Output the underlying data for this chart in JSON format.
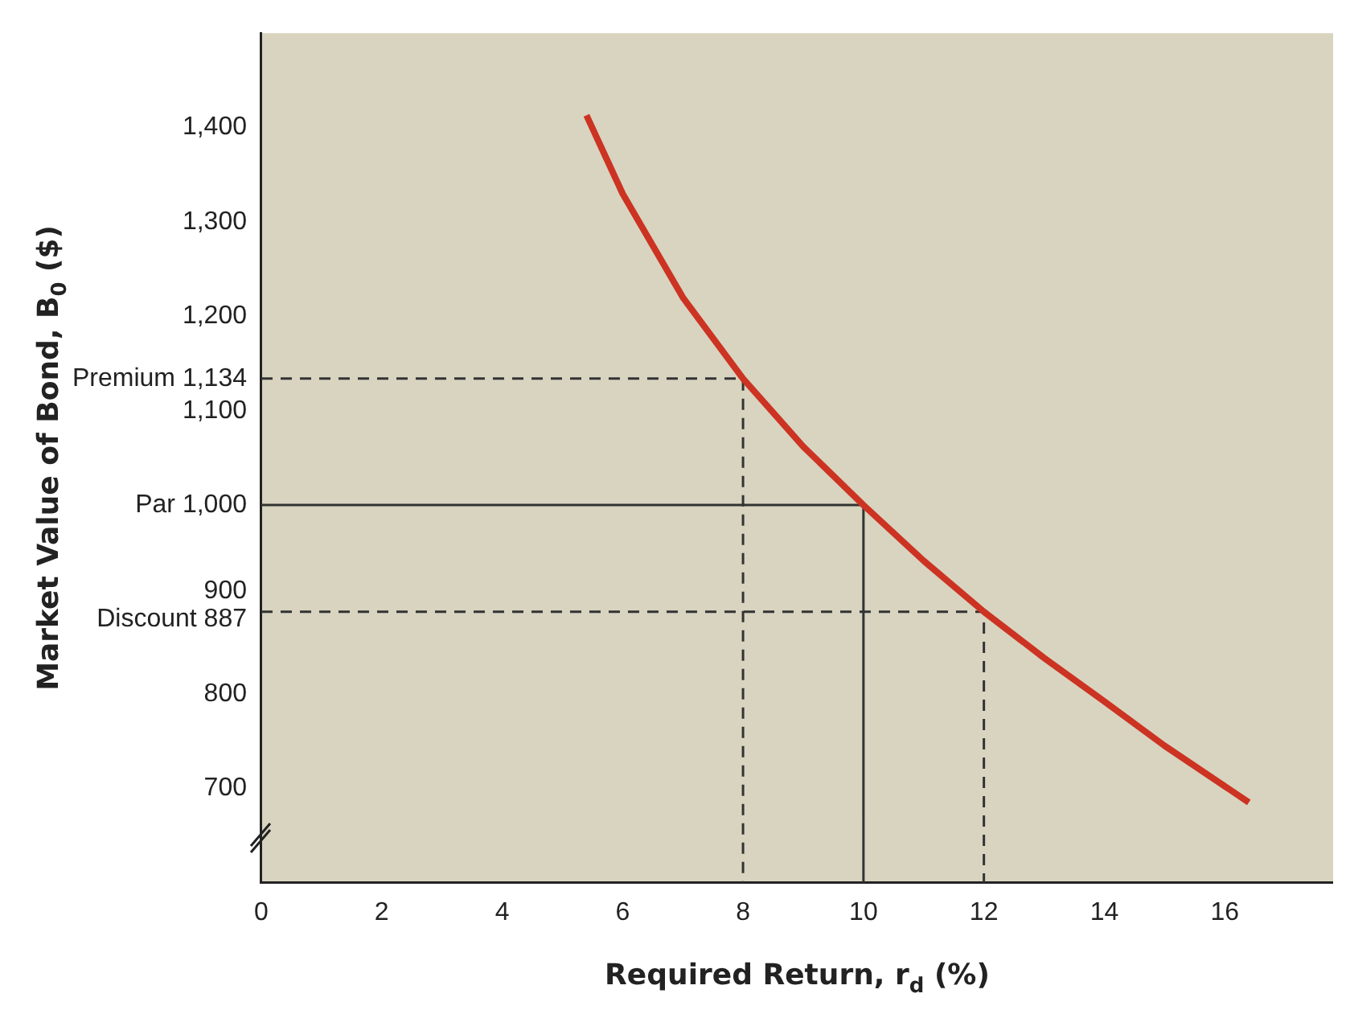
{
  "chart_data": {
    "type": "line",
    "xlabel": "Required Return, r$_{d}$ (%)",
    "ylabel": "Market Value of Bond, B$_{0}$ ($)",
    "xlim": [
      0,
      17.8
    ],
    "xticks": [
      0,
      2,
      4,
      6,
      8,
      10,
      12,
      14,
      16
    ],
    "ylim": [
      600,
      1500
    ],
    "yticks": [
      700,
      800,
      900,
      {
        "value": 887,
        "label": "Discount 887"
      },
      {
        "value": 1000,
        "label": "Par 1,000"
      },
      {
        "value": 1100,
        "label": "1,100"
      },
      {
        "value": 1134,
        "label": "Premium 1,134"
      },
      {
        "value": 1200,
        "label": "1,200"
      },
      {
        "value": 1300,
        "label": "1,300"
      },
      {
        "value": 1400,
        "label": "1,400"
      }
    ],
    "grid": false,
    "marker": "none",
    "series": [
      {
        "type": "line",
        "color": "#cc3322",
        "line_style": "solid",
        "x": [
          5.4,
          6,
          7,
          8,
          9,
          10,
          11,
          12,
          13,
          14,
          15,
          16.4
        ],
        "values": [
          1413,
          1330,
          1220,
          1134,
          1062,
          1000,
          941,
          887,
          838,
          792,
          745,
          685
        ]
      },
      {
        "type": "line",
        "color": "#333333",
        "line_style": "dashed",
        "x": [
          0,
          8,
          8
        ],
        "values": [
          1134,
          1134,
          600
        ]
      },
      {
        "type": "line",
        "color": "#333333",
        "line_style": "solid",
        "x": [
          0,
          10,
          10
        ],
        "values": [
          1000,
          1000,
          600
        ]
      },
      {
        "type": "line",
        "color": "#333333",
        "line_style": "dashed",
        "x": [
          0,
          12,
          12
        ],
        "values": [
          887,
          887,
          600
        ]
      }
    ]
  }
}
